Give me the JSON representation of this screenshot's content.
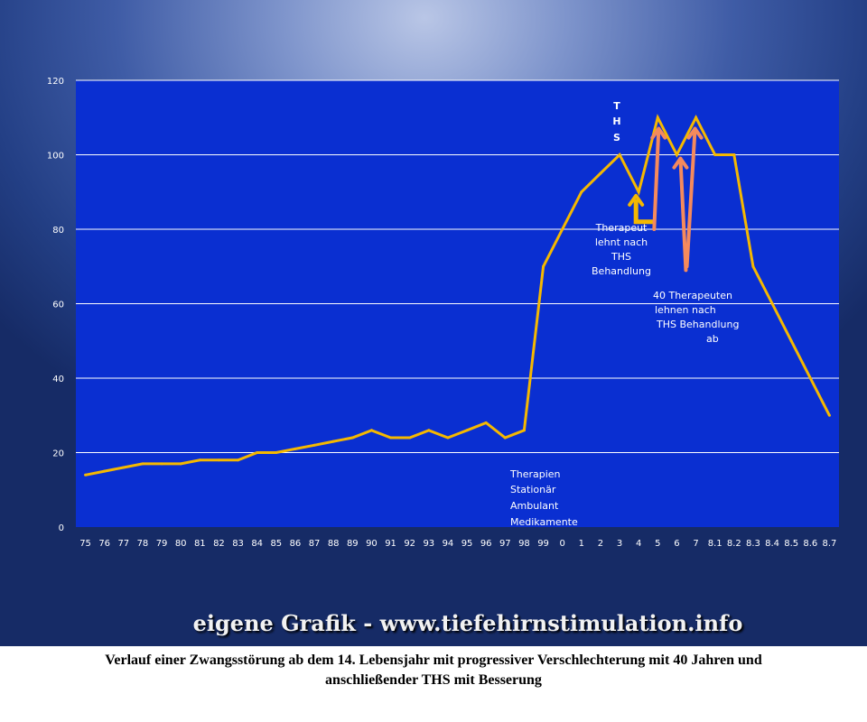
{
  "chart_data": {
    "type": "line",
    "categories": [
      "75",
      "76",
      "77",
      "78",
      "79",
      "80",
      "81",
      "82",
      "83",
      "84",
      "85",
      "86",
      "87",
      "88",
      "89",
      "90",
      "91",
      "92",
      "93",
      "94",
      "95",
      "96",
      "97",
      "98",
      "99",
      "0",
      "1",
      "2",
      "3",
      "4",
      "5",
      "6",
      "7",
      "8.1",
      "8.2",
      "8.3",
      "8.4",
      "8.5",
      "8.6",
      "8.7"
    ],
    "series": [
      {
        "values": [
          14,
          15,
          16,
          17,
          17,
          17,
          18,
          18,
          18,
          20,
          20,
          21,
          22,
          23,
          24,
          26,
          24,
          24,
          26,
          24,
          26,
          28,
          24,
          26,
          70,
          80,
          90,
          95,
          100,
          90,
          110,
          100,
          110,
          100,
          100,
          70,
          60,
          50,
          40,
          30
        ]
      }
    ],
    "ylim": [
      0,
      120
    ],
    "yticks": [
      0,
      20,
      40,
      60,
      80,
      100,
      120
    ],
    "grid": true,
    "legend": "none",
    "colors": {
      "plot_background": "#0a2fd1",
      "line": "#f5b800",
      "arrow": "#f58a5c",
      "gridline": "#ffffff"
    },
    "annotations": {
      "ths_letters": [
        "T",
        "H",
        "S"
      ],
      "therapies": [
        "Therapien",
        "Stationär",
        "Ambulant",
        "Medikamente"
      ],
      "therapist_one": [
        "Therapeut",
        "lehnt nach",
        "THS",
        "Behandlung"
      ],
      "therapists_forty": [
        "40 Therapeuten",
        "lehnen nach",
        "THS Behandlung",
        "ab"
      ]
    }
  },
  "source_label": "eigene Grafik - www.tiefehirnstimulation.info",
  "caption": {
    "line1": "Verlauf  einer  Zwangsstörung ab dem 14. Lebensjahr mit progressiver Verschlechterung mit 40 Jahren und",
    "line2": "anschließender THS mit Besserung"
  }
}
